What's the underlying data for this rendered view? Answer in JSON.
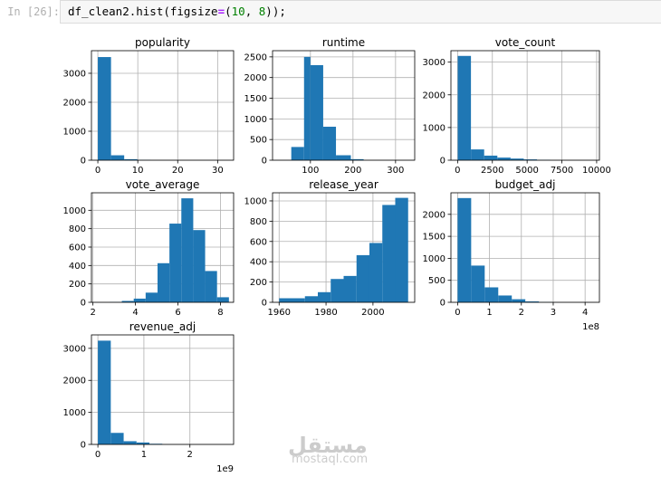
{
  "prompt": "In [26]:",
  "code": {
    "pre": "df_clean2.hist(figsize",
    "op": "=",
    "open": "(",
    "num1": "10",
    "sep": ", ",
    "num2": "8",
    "close": "));"
  },
  "watermark": {
    "logo": "مستقل",
    "text": "mostaql.com"
  },
  "colors": {
    "bar": "#1f77b4",
    "grid": "#b0b0b0"
  },
  "chart_data": [
    {
      "type": "bar",
      "title": "popularity",
      "x_ticks": [
        0,
        10,
        20,
        30
      ],
      "y_ticks": [
        0,
        1000,
        2000,
        3000
      ],
      "xlim": [
        -1.6,
        34
      ],
      "ylim": [
        0,
        3780
      ],
      "bin_edges": [
        0,
        3.3,
        6.6,
        9.9,
        13.2
      ],
      "values": [
        3560,
        170,
        35,
        8
      ],
      "offset_label": ""
    },
    {
      "type": "bar",
      "title": "runtime",
      "x_ticks": [
        100,
        200,
        300
      ],
      "y_ticks": [
        0,
        500,
        1000,
        1500,
        2000,
        2500
      ],
      "xlim": [
        11,
        345
      ],
      "ylim": [
        0,
        2650
      ],
      "bin_edges": [
        55,
        85,
        100,
        130,
        160,
        195,
        225
      ],
      "values": [
        320,
        2500,
        2300,
        810,
        120,
        25
      ],
      "offset_label": ""
    },
    {
      "type": "bar",
      "title": "vote_count",
      "x_ticks": [
        0,
        2500,
        5000,
        7500,
        10000
      ],
      "y_ticks": [
        0,
        1000,
        2000,
        3000
      ],
      "xlim": [
        -480,
        10200
      ],
      "ylim": [
        0,
        3350
      ],
      "bin_edges": [
        10,
        960,
        1910,
        2860,
        3810,
        4760,
        5710,
        6660
      ],
      "values": [
        3190,
        330,
        140,
        80,
        50,
        25,
        10
      ],
      "offset_label": ""
    },
    {
      "type": "bar",
      "title": "vote_average",
      "x_ticks": [
        2,
        4,
        6,
        8
      ],
      "y_ticks": [
        0,
        200,
        400,
        600,
        800,
        1000
      ],
      "xlim": [
        1.93,
        8.62
      ],
      "ylim": [
        0,
        1190
      ],
      "bin_edges": [
        2.8,
        3.36,
        3.92,
        4.48,
        5.04,
        5.6,
        6.16,
        6.72,
        7.28,
        7.84,
        8.4
      ],
      "values": [
        3,
        15,
        40,
        105,
        425,
        855,
        1130,
        785,
        340,
        55
      ],
      "offset_label": ""
    },
    {
      "type": "bar",
      "title": "release_year",
      "x_ticks": [
        1960,
        1980,
        2000
      ],
      "y_ticks": [
        0,
        200,
        400,
        600,
        800,
        1000
      ],
      "xlim": [
        1957.2,
        2017.8
      ],
      "ylim": [
        0,
        1080
      ],
      "bin_edges": [
        1960,
        1965.5,
        1971,
        1976.5,
        1982,
        1987.5,
        1993,
        1998.5,
        2004,
        2009.5,
        2015
      ],
      "values": [
        40,
        40,
        60,
        100,
        230,
        260,
        465,
        585,
        960,
        1030
      ],
      "offset_label": ""
    },
    {
      "type": "bar",
      "title": "budget_adj",
      "x_ticks": [
        0,
        1,
        2,
        3,
        4
      ],
      "y_ticks": [
        0,
        500,
        1000,
        1500,
        2000
      ],
      "xlim": [
        -0.21,
        4.45
      ],
      "ylim": [
        0,
        2490
      ],
      "bin_edges": [
        0,
        0.425,
        0.85,
        1.275,
        1.7,
        2.125,
        2.55,
        2.975
      ],
      "values": [
        2370,
        835,
        340,
        155,
        70,
        20,
        5
      ],
      "offset_label": "1e8"
    },
    {
      "type": "bar",
      "title": "revenue_adj",
      "x_ticks": [
        0,
        1,
        2
      ],
      "y_ticks": [
        0,
        1000,
        2000,
        3000
      ],
      "xlim": [
        -0.14,
        2.95
      ],
      "ylim": [
        0,
        3420
      ],
      "bin_edges": [
        0,
        0.28,
        0.56,
        0.84,
        1.12,
        1.4
      ],
      "values": [
        3240,
        360,
        100,
        60,
        20
      ],
      "offset_label": "1e9"
    }
  ]
}
